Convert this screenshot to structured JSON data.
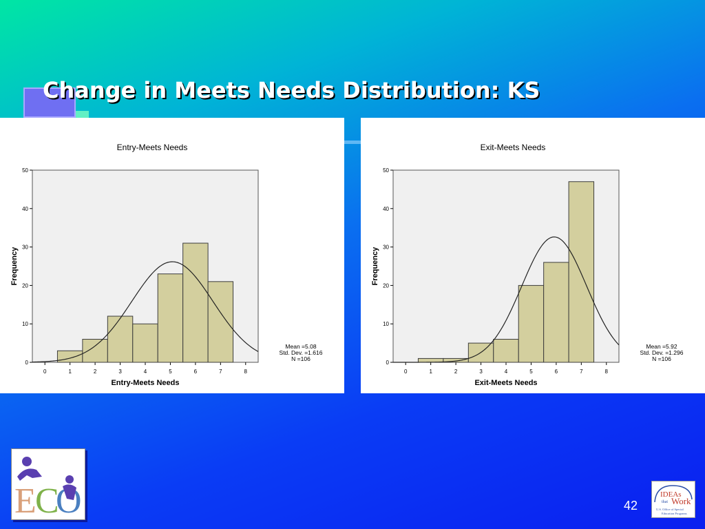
{
  "slide": {
    "title": "Change in Meets Needs Distribution: KS",
    "page_number": "42",
    "logos": [
      "ECO logo",
      "IDEAs that Work - U.S. Office of Special Education Programs"
    ]
  },
  "colors": {
    "bar_fill": "#d3cf9e",
    "plot_bg": "#f0f0f0",
    "title_text": "#ffffff"
  },
  "chart_data": [
    {
      "type": "bar",
      "title": "Entry-Meets Needs",
      "xlabel": "Entry-Meets Needs",
      "ylabel": "Frequency",
      "xlim": [
        -0.5,
        8.5
      ],
      "ylim": [
        0,
        50
      ],
      "x_ticks": [
        0,
        1,
        2,
        3,
        4,
        5,
        6,
        7,
        8
      ],
      "y_ticks": [
        0,
        10,
        20,
        30,
        40,
        50
      ],
      "bins": [
        1,
        2,
        3,
        4,
        5,
        6,
        7
      ],
      "values": [
        3,
        6,
        12,
        10,
        23,
        31,
        21
      ],
      "normal_curve": {
        "mean": 5.08,
        "sd": 1.616,
        "n": 106
      },
      "stats": [
        "Mean =5.08",
        "Std. Dev. =1.616",
        "N =106"
      ],
      "grid": false
    },
    {
      "type": "bar",
      "title": "Exit-Meets Needs",
      "xlabel": "Exit-Meets Needs",
      "ylabel": "Frequency",
      "xlim": [
        -0.5,
        8.5
      ],
      "ylim": [
        0,
        50
      ],
      "x_ticks": [
        0,
        1,
        2,
        3,
        4,
        5,
        6,
        7,
        8
      ],
      "y_ticks": [
        0,
        10,
        20,
        30,
        40,
        50
      ],
      "bins": [
        1,
        2,
        3,
        4,
        5,
        6,
        7
      ],
      "values": [
        1,
        1,
        5,
        6,
        20,
        26,
        47
      ],
      "normal_curve": {
        "mean": 5.92,
        "sd": 1.296,
        "n": 106
      },
      "stats": [
        "Mean =5.92",
        "Std. Dev. =1.296",
        "N =106"
      ],
      "grid": false
    }
  ]
}
